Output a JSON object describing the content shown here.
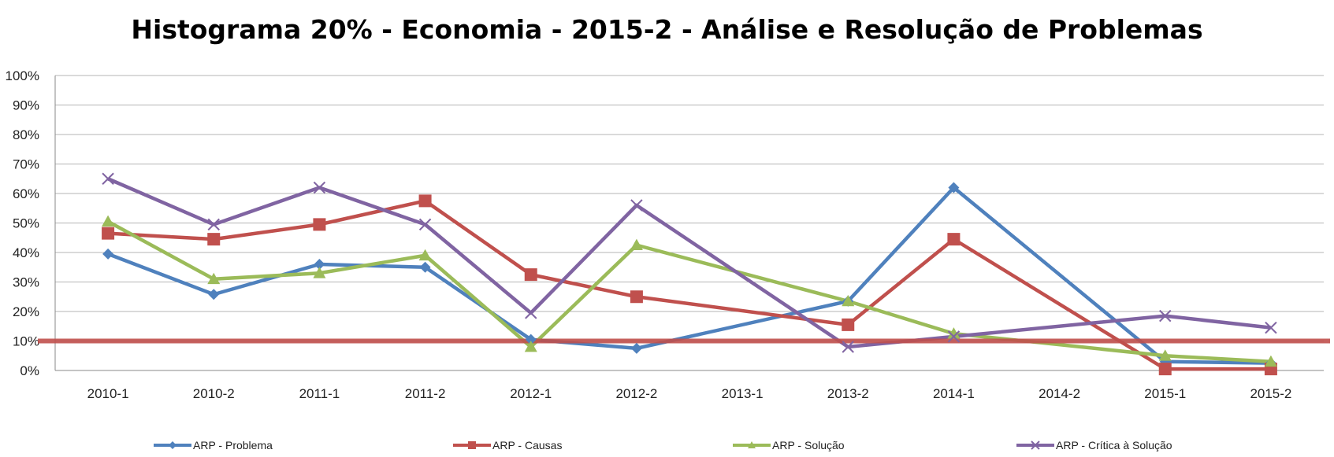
{
  "chart_data": {
    "type": "line",
    "title": "Histograma 20% - Economia - 2015-2 - Análise e Resolução de Problemas",
    "xlabel": "",
    "ylabel": "",
    "categories": [
      "2010-1",
      "2010-2",
      "2011-1",
      "2011-2",
      "2012-1",
      "2012-2",
      "2013-1",
      "2013-2",
      "2014-1",
      "2014-2",
      "2015-1",
      "2015-2"
    ],
    "ylim": [
      0,
      100
    ],
    "ytick_labels": [
      "0%",
      "10%",
      "20%",
      "30%",
      "40%",
      "50%",
      "60%",
      "70%",
      "80%",
      "90%",
      "100%"
    ],
    "grid": true,
    "legend_position": "bottom",
    "reference_line": {
      "value": 10,
      "color": "#C0504D"
    },
    "series": [
      {
        "name": "ARP  - Problema",
        "color": "#4F81BD",
        "marker": "diamond",
        "values": [
          39.5,
          25.8,
          36.0,
          35.0,
          10.5,
          7.5,
          null,
          23.5,
          62.0,
          null,
          3.0,
          2.5
        ]
      },
      {
        "name": "ARP  - Causas",
        "color": "#C0504D",
        "marker": "square",
        "values": [
          46.5,
          44.5,
          49.5,
          57.5,
          32.5,
          25.0,
          null,
          15.5,
          44.5,
          null,
          0.5,
          0.5
        ]
      },
      {
        "name": "ARP  - Solução",
        "color": "#9BBB59",
        "marker": "triangle",
        "values": [
          50.5,
          31.0,
          33.0,
          39.0,
          8.0,
          42.5,
          null,
          23.5,
          12.5,
          null,
          5.0,
          3.0
        ]
      },
      {
        "name": "ARP  - Crítica à Solução",
        "color": "#8064A2",
        "marker": "x",
        "values": [
          65.0,
          49.5,
          62.0,
          49.5,
          19.5,
          56.0,
          null,
          8.0,
          11.5,
          null,
          18.5,
          14.5
        ]
      }
    ]
  }
}
